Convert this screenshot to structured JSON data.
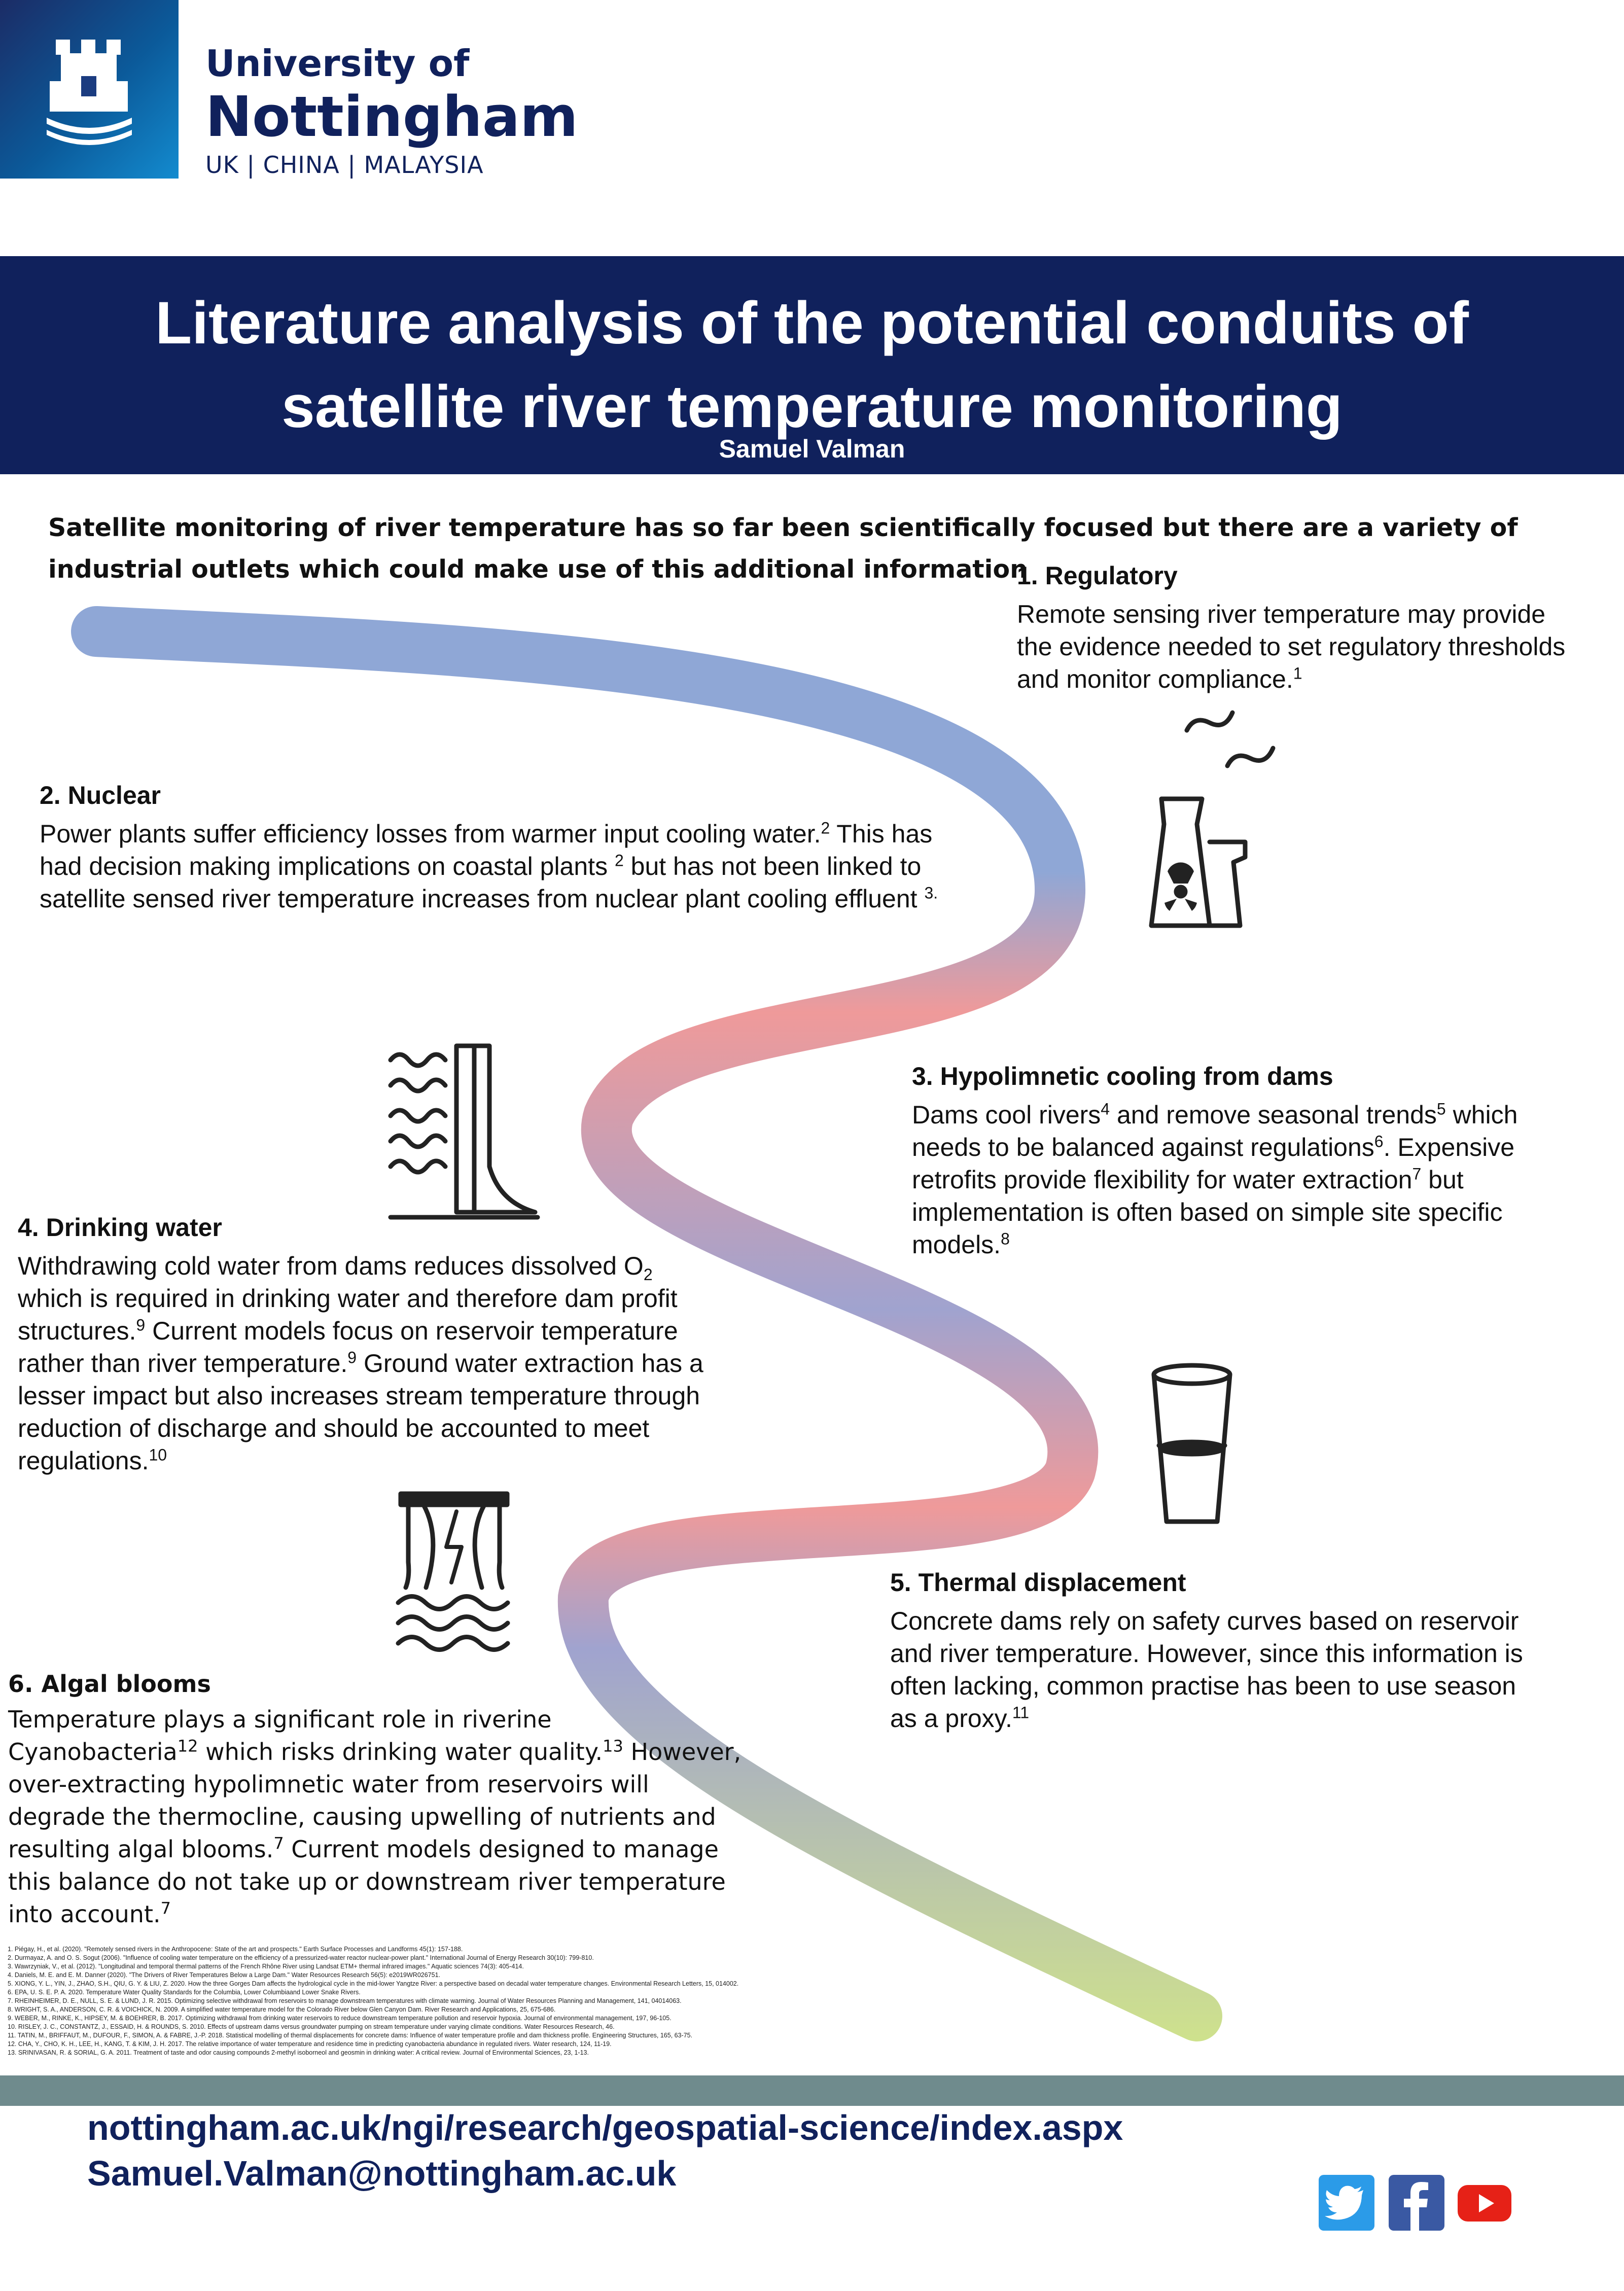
{
  "header": {
    "university_line1": "University of",
    "university_line2": "Nottingham",
    "university_line3": "UK | CHINA | MALAYSIA"
  },
  "banner": {
    "title_line1": "Literature analysis of the potential conduits of",
    "title_line2": "satellite river temperature monitoring",
    "author": "Samuel Valman"
  },
  "intro": "Satellite monitoring of river temperature has so far been scientifically focused but there are a variety of industrial outlets which could make use of this additional information",
  "sections": {
    "regulatory": {
      "heading": "1. Regulatory",
      "text": "Remote sensing river temperature may provide the evidence needed to set regulatory thresholds and monitor compliance.",
      "ref": "1"
    },
    "nuclear": {
      "heading": "2. Nuclear",
      "t1": "Power plants suffer efficiency losses from warmer input cooling water.",
      "r1": "2",
      "t2": " This has had decision making implications on coastal plants ",
      "r2": "2",
      "t3": " but has not been linked to satellite sensed river temperature increases from nuclear plant cooling effluent ",
      "r3": "3."
    },
    "hypolimnetic": {
      "heading": "3. Hypolimnetic cooling from dams",
      "t1": "Dams cool rivers",
      "r1": "4",
      "t2": " and remove seasonal trends",
      "r2": "5",
      "t3": " which needs to be balanced against regulations",
      "r3": "6",
      "t4": ". Expensive retrofits provide flexibility for water extraction",
      "r4": "7",
      "t5": " but implementation is often based on simple site specific models.",
      "r5": "8"
    },
    "drinking": {
      "heading": "4. Drinking water",
      "t1": "Withdrawing cold water from dams reduces dissolved O",
      "sub": "2",
      "t2": " which is required in drinking water and therefore dam profit structures.",
      "r1": "9",
      "t3": " Current models focus on reservoir temperature rather than river temperature.",
      "r2": "9",
      "t4": " Ground water extraction has a lesser impact but also increases stream temperature through reduction of discharge and should be accounted to meet regulations.",
      "r3": "10"
    },
    "thermal": {
      "heading": "5. Thermal displacement",
      "text": "Concrete dams rely on safety curves based on reservoir and river temperature. However, since this information is often lacking, common practise has been to use season as a proxy.",
      "ref": "11"
    },
    "algal": {
      "heading": "6. Algal blooms",
      "t1": "Temperature plays a significant role in riverine Cyanobacteria",
      "r1": "12",
      "t2": "  which risks drinking water quality.",
      "r2": "13",
      "t3": "  However, over-extracting hypolimnetic water from reservoirs will degrade the thermocline, causing upwelling of nutrients and resulting algal blooms.",
      "r3": "7",
      "t4": " Current models designed to manage this balance do not take up or downstream river temperature into account.",
      "r4": "7"
    }
  },
  "references": [
    "1. Piégay, H., et al. (2020). \"Remotely sensed rivers in the Anthropocene: State of the art and prospects.\" Earth Surface Processes and Landforms 45(1): 157-188.",
    "2. Durmayaz, A. and O. S. Sogut (2006). \"Influence of cooling water temperature on the efficiency of a pressurized-water reactor nuclear-power plant.\" International Journal of Energy Research 30(10): 799-810.",
    "3. Wawrzyniak, V., et al. (2012). \"Longitudinal and temporal thermal patterns of the French Rhône River using Landsat ETM+ thermal infrared images.\" Aquatic sciences 74(3): 405-414.",
    "4. Daniels, M. E. and E. M. Danner (2020). \"The Drivers of River Temperatures Below a Large Dam.\" Water Resources Research 56(5): e2019WR026751.",
    "5. XIONG, Y. L., YIN, J., ZHAO, S.H., QIU, G. Y. & LIU, Z. 2020. How the three Gorges Dam affects the hydrological cycle in the mid-lower Yangtze River: a perspective based on decadal water temperature changes. Environmental Research Letters, 15, 014002.",
    "6. EPA, U. S. E. P. A. 2020. Temperature Water Quality Standards for the Columbia, Lower Columbiaand Lower Snake Rivers.",
    "7. RHEINHEIMER, D. E., NULL, S. E. & LUND, J. R. 2015. Optimizing selective withdrawal from reservoirs to manage downstream temperatures with climate warming. Journal of Water Resources Planning and Management, 141, 04014063.",
    "8. WRIGHT, S. A., ANDERSON, C. R. & VOICHICK, N. 2009. A simplified water temperature model for the Colorado River below Glen Canyon Dam. River Research and Applications, 25, 675-686.",
    "9. WEBER, M., RINKE, K., HIPSEY, M. & BOEHRER, B. 2017. Optimizing withdrawal from drinking water reservoirs to reduce downstream temperature pollution and reservoir hypoxia. Journal of environmental management, 197, 96-105.",
    "10. RISLEY, J. C., CONSTANTZ, J., ESSAID, H. & ROUNDS, S. 2010. Effects of upstream dams versus groundwater pumping on stream temperature under varying climate conditions. Water Resources Research, 46.",
    "11. TATIN, M., BRIFFAUT, M., DUFOUR, F., SIMON, A. & FABRE, J.-P. 2018. Statistical modelling of thermal displacements for concrete dams: Influence of water temperature profile and dam thickness profile. Engineering Structures, 165, 63-75.",
    "12. CHA, Y., CHO, K. H., LEE, H., KANG, T. & KIM, J. H. 2017. The relative importance of water temperature and residence time in predicting cyanobacteria abundance in regulated rivers. Water research, 124, 11-19.",
    "13. SRINIVASAN, R. & SORIAL, G. A. 2011. Treatment of taste and odor causing compounds 2-methyl isoborneol and geosmin in drinking water: A critical review. Journal of Environmental Sciences, 23, 1-13."
  ],
  "footer": {
    "url": "nottingham.ac.uk/ngi/research/geospatial-science/index.aspx",
    "email": "Samuel.Valman@nottingham.ac.uk"
  },
  "icons": [
    "castle-logo-icon",
    "nuclear-plant-icon",
    "dam-water-icon",
    "water-glass-icon",
    "dam-spillway-icon",
    "twitter-icon",
    "facebook-icon",
    "youtube-icon"
  ],
  "colors": {
    "navy": "#10215c",
    "footer_strip": "#6f8b8d",
    "river_blue": "#8fa7d6",
    "river_red": "#ef9a9a",
    "river_purple": "#a0a3cf",
    "river_green": "#cfe28c"
  }
}
